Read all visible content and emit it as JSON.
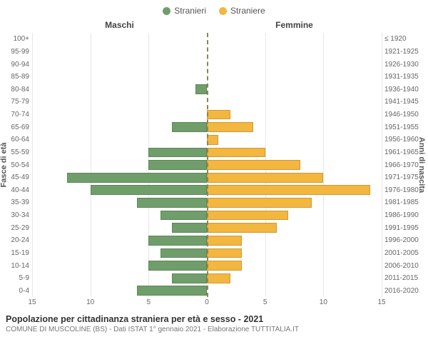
{
  "legend": {
    "male": {
      "label": "Stranieri",
      "color": "#6f9e6a"
    },
    "female": {
      "label": "Straniere",
      "color": "#f3b63f"
    }
  },
  "headers": {
    "male": "Maschi",
    "female": "Femmine"
  },
  "axis": {
    "left_label": "Fasce di età",
    "right_label": "Anni di nascita",
    "x_ticks": [
      15,
      10,
      5,
      0,
      5,
      10,
      15
    ],
    "x_max": 15
  },
  "grid_color": "#e6e6e6",
  "background_color": "#ffffff",
  "rows": [
    {
      "age": "100+",
      "birth": "≤ 1920",
      "m": 0,
      "f": 0
    },
    {
      "age": "95-99",
      "birth": "1921-1925",
      "m": 0,
      "f": 0
    },
    {
      "age": "90-94",
      "birth": "1926-1930",
      "m": 0,
      "f": 0
    },
    {
      "age": "85-89",
      "birth": "1931-1935",
      "m": 0,
      "f": 0
    },
    {
      "age": "80-84",
      "birth": "1936-1940",
      "m": 1,
      "f": 0
    },
    {
      "age": "75-79",
      "birth": "1941-1945",
      "m": 0,
      "f": 0
    },
    {
      "age": "70-74",
      "birth": "1946-1950",
      "m": 0,
      "f": 2
    },
    {
      "age": "65-69",
      "birth": "1951-1955",
      "m": 3,
      "f": 4
    },
    {
      "age": "60-64",
      "birth": "1956-1960",
      "m": 0,
      "f": 1
    },
    {
      "age": "55-59",
      "birth": "1961-1965",
      "m": 5,
      "f": 5
    },
    {
      "age": "50-54",
      "birth": "1966-1970",
      "m": 5,
      "f": 8
    },
    {
      "age": "45-49",
      "birth": "1971-1975",
      "m": 12,
      "f": 10
    },
    {
      "age": "40-44",
      "birth": "1976-1980",
      "m": 10,
      "f": 14
    },
    {
      "age": "35-39",
      "birth": "1981-1985",
      "m": 6,
      "f": 9
    },
    {
      "age": "30-34",
      "birth": "1986-1990",
      "m": 4,
      "f": 7
    },
    {
      "age": "25-29",
      "birth": "1991-1995",
      "m": 3,
      "f": 6
    },
    {
      "age": "20-24",
      "birth": "1996-2000",
      "m": 5,
      "f": 3
    },
    {
      "age": "15-19",
      "birth": "2001-2005",
      "m": 4,
      "f": 3
    },
    {
      "age": "10-14",
      "birth": "2006-2010",
      "m": 5,
      "f": 3
    },
    {
      "age": "5-9",
      "birth": "2011-2015",
      "m": 3,
      "f": 2
    },
    {
      "age": "0-4",
      "birth": "2016-2020",
      "m": 6,
      "f": 0
    }
  ],
  "title": "Popolazione per cittadinanza straniera per età e sesso - 2021",
  "subtitle": "COMUNE DI MUSCOLINE (BS) - Dati ISTAT 1° gennaio 2021 - Elaborazione TUTTITALIA.IT"
}
